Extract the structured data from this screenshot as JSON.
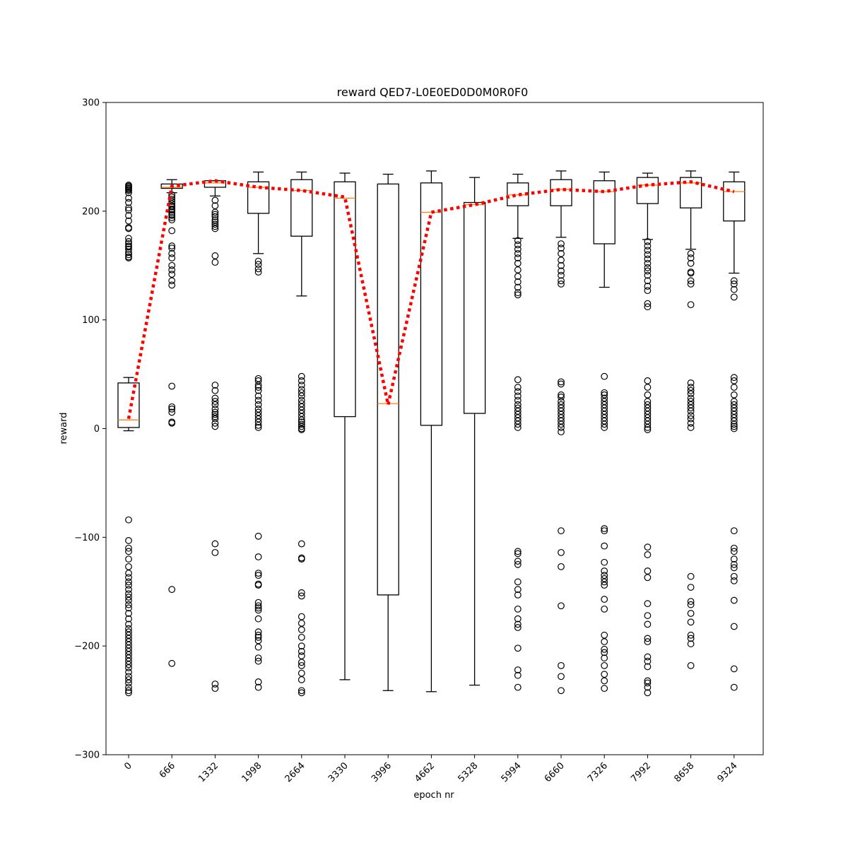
{
  "chart_data": {
    "type": "box",
    "title": "reward QED7-L0E0ED0D0M0R0F0",
    "xlabel": "epoch nr",
    "ylabel": "reward",
    "ylim": [
      -300,
      300
    ],
    "yticks": [
      -300,
      -200,
      -100,
      0,
      100,
      200,
      300
    ],
    "yticklabels": [
      "−300",
      "−200",
      "−100",
      "0",
      "100",
      "200",
      "300"
    ],
    "categories": [
      "0",
      "666",
      "1332",
      "1998",
      "2664",
      "3330",
      "3996",
      "4662",
      "5328",
      "5994",
      "6660",
      "7326",
      "7992",
      "8658",
      "9324"
    ],
    "grid": false,
    "mean_line": {
      "style": "dotted",
      "color": "#ff0000",
      "values": [
        9,
        223,
        228,
        222,
        219,
        213,
        22,
        199,
        206,
        215,
        220,
        218,
        224,
        227,
        218
      ]
    },
    "median_color": "#ff7f0e",
    "box_color": "#000000",
    "boxes": [
      {
        "q1": 1,
        "median": 8,
        "q3": 42,
        "whislo": -2,
        "whishi": 47,
        "fliers": [
          224,
          223,
          222,
          221,
          220,
          219,
          217,
          212,
          208,
          203,
          201,
          196,
          191,
          185,
          184,
          175,
          172,
          170,
          168,
          167,
          165,
          162,
          160,
          158,
          157,
          -84,
          -103,
          -110,
          -113,
          -120,
          -127,
          -133,
          -137,
          -141,
          -144,
          -148,
          -152,
          -155,
          -158,
          -162,
          -165,
          -170,
          -175,
          -180,
          -184,
          -187,
          -190,
          -193,
          -196,
          -199,
          -202,
          -205,
          -208,
          -211,
          -214,
          -217,
          -220,
          -224,
          -228,
          -231,
          -234,
          -238,
          -241,
          -243
        ]
      },
      {
        "q1": 221,
        "median": 222,
        "q3": 225,
        "whislo": 217,
        "whishi": 229,
        "fliers": [
          215,
          213,
          211,
          209,
          207,
          205,
          204,
          202,
          201,
          199,
          197,
          196,
          194,
          192,
          182,
          168,
          166,
          161,
          157,
          150,
          146,
          142,
          136,
          132,
          39,
          20,
          18,
          15,
          6,
          5,
          -148,
          -216
        ]
      },
      {
        "q1": 222,
        "median": 226,
        "q3": 228,
        "whislo": 214,
        "whishi": 228,
        "fliers": [
          210,
          205,
          199,
          197,
          195,
          192,
          190,
          188,
          186,
          184,
          159,
          153,
          40,
          35,
          28,
          25,
          22,
          18,
          15,
          13,
          11,
          9,
          5,
          2,
          -106,
          -114,
          -235,
          -239
        ]
      },
      {
        "q1": 198,
        "median": 222,
        "q3": 227,
        "whislo": 161,
        "whishi": 236,
        "fliers": [
          154,
          151,
          147,
          144,
          46,
          44,
          40,
          38,
          35,
          30,
          26,
          22,
          18,
          15,
          12,
          9,
          6,
          3,
          1,
          -99,
          -118,
          -133,
          -135,
          -143,
          -144,
          -160,
          -163,
          -165,
          -167,
          -175,
          -187,
          -190,
          -192,
          -195,
          -201,
          -211,
          -214,
          -233,
          -238
        ]
      },
      {
        "q1": 177,
        "median": 219,
        "q3": 229,
        "whislo": 122,
        "whishi": 236,
        "fliers": [
          48,
          44,
          40,
          36,
          33,
          30,
          26,
          23,
          20,
          17,
          14,
          11,
          8,
          6,
          4,
          2,
          0,
          -1,
          -106,
          -119,
          -120,
          -151,
          -154,
          -173,
          -179,
          -185,
          -192,
          -200,
          -205,
          -209,
          -215,
          -218,
          -225,
          -231,
          -241,
          -243
        ]
      },
      {
        "q1": 11,
        "median": 212,
        "q3": 227,
        "whislo": -231,
        "whishi": 235,
        "fliers": []
      },
      {
        "q1": -153,
        "median": 23,
        "q3": 225,
        "whislo": -241,
        "whishi": 234,
        "fliers": []
      },
      {
        "q1": 3,
        "median": 199,
        "q3": 226,
        "whislo": -242,
        "whishi": 237,
        "fliers": []
      },
      {
        "q1": 14,
        "median": 206,
        "q3": 208,
        "whislo": -236,
        "whishi": 231,
        "fliers": []
      },
      {
        "q1": 205,
        "median": 215,
        "q3": 226,
        "whislo": 175,
        "whishi": 234,
        "fliers": [
          173,
          169,
          165,
          161,
          157,
          152,
          146,
          140,
          135,
          130,
          125,
          123,
          45,
          38,
          34,
          30,
          26,
          22,
          19,
          16,
          13,
          10,
          7,
          4,
          1,
          -113,
          -115,
          -122,
          -125,
          -141,
          -148,
          -153,
          -166,
          -175,
          -180,
          -183,
          -202,
          -222,
          -227,
          -238
        ]
      },
      {
        "q1": 205,
        "median": 220,
        "q3": 229,
        "whislo": 176,
        "whishi": 237,
        "fliers": [
          170,
          166,
          161,
          155,
          150,
          145,
          141,
          136,
          133,
          43,
          41,
          31,
          29,
          25,
          22,
          19,
          16,
          13,
          10,
          7,
          4,
          1,
          -3,
          -94,
          -114,
          -127,
          -163,
          -218,
          -228,
          -241
        ]
      },
      {
        "q1": 170,
        "median": 218,
        "q3": 228,
        "whislo": 130,
        "whishi": 236,
        "fliers": [
          48,
          33,
          31,
          28,
          25,
          22,
          19,
          16,
          13,
          10,
          7,
          4,
          1,
          -92,
          -94,
          -108,
          -123,
          -131,
          -135,
          -138,
          -141,
          -144,
          -157,
          -166,
          -190,
          -196,
          -203,
          -206,
          -211,
          -218,
          -226,
          -232,
          -239
        ]
      },
      {
        "q1": 207,
        "median": 224,
        "q3": 231,
        "whislo": 174,
        "whishi": 235,
        "fliers": [
          172,
          168,
          164,
          160,
          156,
          152,
          148,
          145,
          141,
          136,
          131,
          127,
          115,
          112,
          44,
          38,
          31,
          25,
          22,
          19,
          16,
          13,
          10,
          7,
          4,
          1,
          -1,
          -109,
          -116,
          -131,
          -137,
          -161,
          -172,
          -180,
          -193,
          -196,
          -210,
          -214,
          -219,
          -232,
          -234,
          -238,
          -243
        ]
      },
      {
        "q1": 203,
        "median": 226,
        "q3": 231,
        "whislo": 165,
        "whishi": 237,
        "fliers": [
          161,
          157,
          152,
          144,
          143,
          136,
          133,
          114,
          42,
          38,
          35,
          32,
          28,
          25,
          22,
          19,
          16,
          12,
          9,
          5,
          1,
          -136,
          -146,
          -159,
          -162,
          -170,
          -178,
          -190,
          -193,
          -198,
          -218
        ]
      },
      {
        "q1": 191,
        "median": 218,
        "q3": 227,
        "whislo": 143,
        "whishi": 236,
        "fliers": [
          136,
          133,
          128,
          121,
          47,
          44,
          38,
          31,
          25,
          22,
          19,
          16,
          13,
          10,
          7,
          4,
          2,
          0,
          -94,
          -110,
          -113,
          -120,
          -125,
          -128,
          -136,
          -140,
          -158,
          -182,
          -221,
          -238
        ]
      }
    ]
  }
}
